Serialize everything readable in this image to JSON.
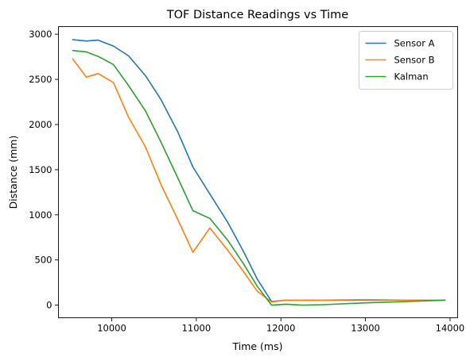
{
  "chart_data": {
    "type": "line",
    "title": "TOF Distance Readings vs Time",
    "xlabel": "Time (ms)",
    "ylabel": "Distance (mm)",
    "xlim": [
      9370,
      14090
    ],
    "ylim": [
      -140,
      3085
    ],
    "xticks": [
      10000,
      11000,
      12000,
      13000,
      14000
    ],
    "yticks": [
      0,
      500,
      1000,
      1500,
      2000,
      2500,
      3000
    ],
    "grid": false,
    "legend_position": "top-right",
    "series": [
      {
        "name": "Sensor A",
        "color": "#1f77b4",
        "x": [
          9540,
          9700,
          9840,
          10020,
          10200,
          10400,
          10580,
          10780,
          10960,
          11160,
          11370,
          11560,
          11720,
          11890,
          12060,
          12500,
          13000,
          13500,
          13940
        ],
        "y": [
          2940,
          2925,
          2935,
          2870,
          2760,
          2540,
          2280,
          1920,
          1530,
          1230,
          920,
          590,
          290,
          40,
          55,
          55,
          55,
          55,
          55
        ]
      },
      {
        "name": "Sensor B",
        "color": "#ff7f0e",
        "x": [
          9540,
          9700,
          9840,
          10020,
          10200,
          10400,
          10580,
          10780,
          10960,
          11160,
          11370,
          11560,
          11720,
          11890,
          12060,
          12500,
          13000,
          13500,
          13940
        ],
        "y": [
          2725,
          2525,
          2565,
          2465,
          2080,
          1750,
          1340,
          950,
          585,
          855,
          610,
          370,
          155,
          35,
          55,
          55,
          60,
          55,
          55
        ]
      },
      {
        "name": "Kalman",
        "color": "#2ca02c",
        "x": [
          9540,
          9700,
          9840,
          10020,
          10200,
          10400,
          10580,
          10780,
          10960,
          11160,
          11370,
          11560,
          11720,
          11890,
          12060,
          12250,
          12500,
          13000,
          13500,
          13940
        ],
        "y": [
          2820,
          2805,
          2755,
          2665,
          2430,
          2150,
          1810,
          1410,
          1045,
          960,
          720,
          455,
          210,
          0,
          10,
          0,
          5,
          25,
          40,
          55
        ]
      }
    ]
  }
}
